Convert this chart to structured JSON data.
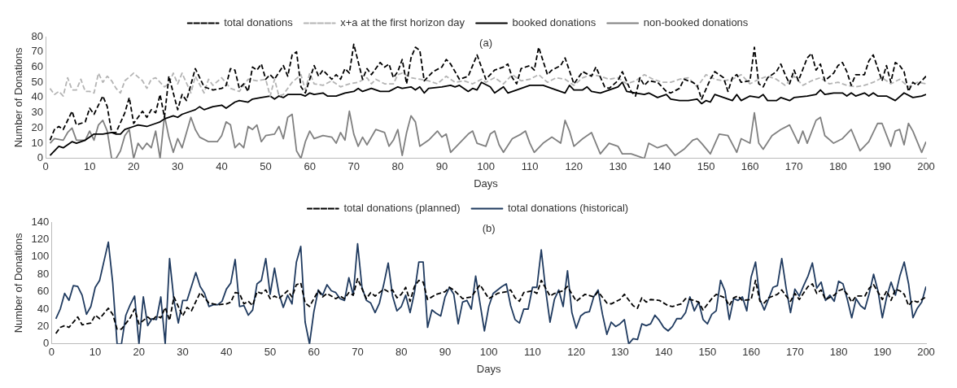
{
  "chart_data": [
    {
      "type": "line",
      "xlabel": "Days",
      "ylabel": "Number of Donations",
      "annotations": [
        "(a)"
      ],
      "xlim": [
        0,
        200
      ],
      "xticks": [
        0,
        10,
        20,
        30,
        40,
        50,
        60,
        70,
        80,
        90,
        100,
        110,
        120,
        130,
        140,
        150,
        160,
        170,
        180,
        190,
        200
      ],
      "ylim": [
        0,
        80
      ],
      "yticks": [
        0,
        10,
        20,
        30,
        40,
        50,
        60,
        70,
        80
      ],
      "grid": false,
      "legend": "top",
      "marker": "none",
      "series": [
        {
          "name": "total donations",
          "color": "#000000",
          "line_style": "dashed",
          "x": [
            1,
            2,
            3,
            4,
            6,
            7,
            9,
            10,
            11,
            13,
            14,
            15,
            16,
            18,
            19,
            20,
            22,
            23,
            24,
            25,
            26,
            27,
            28,
            30,
            31,
            32,
            34,
            36,
            38,
            40,
            41,
            42,
            43,
            44,
            45,
            46,
            47,
            48,
            49,
            50,
            51,
            52,
            54,
            55,
            56,
            57,
            58,
            59,
            61,
            62,
            63,
            65,
            66,
            67,
            68,
            69,
            70,
            72,
            73,
            74,
            76,
            77,
            78,
            79,
            80,
            81,
            82,
            83,
            84,
            85,
            86,
            88,
            90,
            91,
            92,
            94,
            96,
            98,
            99,
            100,
            102,
            104,
            105,
            106,
            107,
            108,
            110,
            111,
            112,
            114,
            115,
            117,
            118,
            120,
            122,
            124,
            125,
            127,
            128,
            130,
            131,
            133,
            134,
            135,
            136,
            137,
            139,
            141,
            142,
            144,
            145,
            147,
            148,
            149,
            151,
            152,
            154,
            155,
            156,
            157,
            158,
            160,
            161,
            162,
            163,
            164,
            166,
            167,
            168,
            169,
            170,
            171,
            173,
            174,
            175,
            176,
            177,
            179,
            180,
            181,
            182,
            183,
            184,
            186,
            187,
            188,
            190,
            191,
            192,
            193,
            194,
            195,
            196,
            197,
            198,
            199,
            200
          ],
          "values": [
            12,
            19,
            21,
            19,
            31,
            22,
            24,
            33,
            29,
            41,
            34,
            17,
            17,
            30,
            40,
            23,
            31,
            27,
            32,
            30,
            42,
            27,
            54,
            32,
            42,
            38,
            59,
            47,
            45,
            46,
            48,
            59,
            58,
            46,
            49,
            44,
            60,
            58,
            62,
            52,
            55,
            52,
            61,
            54,
            68,
            70,
            47,
            43,
            61,
            54,
            58,
            52,
            55,
            52,
            59,
            56,
            75,
            52,
            59,
            55,
            63,
            60,
            62,
            53,
            57,
            65,
            49,
            66,
            73,
            71,
            51,
            57,
            60,
            65,
            62,
            52,
            54,
            68,
            60,
            52,
            58,
            60,
            62,
            53,
            49,
            59,
            61,
            58,
            73,
            55,
            58,
            61,
            66,
            49,
            57,
            54,
            60,
            47,
            46,
            51,
            57,
            44,
            41,
            53,
            48,
            51,
            50,
            44,
            43,
            46,
            52,
            50,
            48,
            39,
            52,
            57,
            53,
            44,
            53,
            55,
            50,
            51,
            73,
            49,
            47,
            53,
            57,
            62,
            55,
            49,
            58,
            51,
            66,
            69,
            58,
            62,
            51,
            56,
            61,
            63,
            57,
            48,
            55,
            55,
            64,
            68,
            51,
            61,
            50,
            63,
            61,
            57,
            44,
            50,
            48,
            51,
            54
          ]
        },
        {
          "name": "x+a at the first horizon day",
          "color": "#b4b4b4",
          "line_style": "dashed",
          "x": [
            1,
            2,
            3,
            4,
            5,
            6,
            7,
            8,
            9,
            10,
            11,
            12,
            13,
            14,
            15,
            16,
            17,
            18,
            20,
            22,
            23,
            24,
            25,
            27,
            28,
            29,
            30,
            31,
            33,
            34,
            36,
            37,
            38,
            40,
            42,
            44,
            46,
            48,
            50,
            51,
            52,
            53,
            54,
            56,
            58,
            59,
            60,
            61,
            63,
            65,
            67,
            69,
            71,
            73,
            74,
            75,
            77,
            79,
            80,
            81,
            83,
            85,
            87,
            89,
            91,
            93,
            95,
            97,
            99,
            100,
            102,
            104,
            106,
            108,
            110,
            112,
            114,
            116,
            118,
            120,
            122,
            124,
            126,
            128,
            130,
            132,
            134,
            136,
            138,
            140,
            142,
            144,
            146,
            148,
            150,
            152,
            154,
            156,
            158,
            160,
            162,
            164,
            166,
            168,
            170,
            172,
            174,
            176,
            178,
            180,
            182,
            184,
            186,
            188,
            190,
            192,
            194,
            196,
            198,
            200
          ],
          "values": [
            46,
            42,
            44,
            41,
            53,
            45,
            45,
            52,
            44,
            44,
            43,
            56,
            50,
            54,
            51,
            46,
            43,
            51,
            56,
            51,
            46,
            52,
            53,
            47,
            49,
            56,
            49,
            56,
            43,
            54,
            43,
            52,
            48,
            53,
            46,
            44,
            52,
            51,
            52,
            41,
            52,
            41,
            42,
            50,
            55,
            45,
            56,
            49,
            48,
            51,
            47,
            49,
            50,
            53,
            49,
            52,
            49,
            49,
            55,
            56,
            53,
            52,
            51,
            49,
            54,
            50,
            51,
            49,
            52,
            50,
            53,
            49,
            55,
            51,
            52,
            55,
            50,
            53,
            52,
            48,
            53,
            55,
            54,
            52,
            53,
            49,
            51,
            55,
            52,
            50,
            50,
            52,
            53,
            47,
            55,
            52,
            51,
            52,
            55,
            49,
            52,
            54,
            52,
            48,
            54,
            48,
            51,
            53,
            49,
            50,
            48,
            47,
            48,
            50,
            53,
            49,
            52,
            47,
            50,
            49
          ]
        },
        {
          "name": "booked donations",
          "color": "#000000",
          "line_style": "solid",
          "x": [
            1,
            3,
            4,
            5,
            6,
            7,
            9,
            10,
            11,
            13,
            15,
            16,
            17,
            18,
            20,
            21,
            23,
            25,
            26,
            27,
            29,
            30,
            31,
            33,
            34,
            35,
            36,
            38,
            40,
            41,
            43,
            44,
            46,
            47,
            49,
            51,
            52,
            53,
            54,
            55,
            58,
            59,
            60,
            61,
            63,
            64,
            66,
            68,
            70,
            71,
            72,
            74,
            76,
            78,
            80,
            81,
            83,
            84,
            85,
            86,
            87,
            90,
            92,
            93,
            94,
            96,
            97,
            98,
            99,
            101,
            102,
            104,
            105,
            107,
            110,
            113,
            116,
            118,
            119,
            120,
            122,
            123,
            124,
            126,
            128,
            130,
            131,
            132,
            134,
            136,
            137,
            139,
            141,
            142,
            144,
            146,
            148,
            149,
            150,
            151,
            152,
            154,
            156,
            157,
            158,
            160,
            162,
            163,
            164,
            166,
            167,
            169,
            170,
            173,
            175,
            176,
            177,
            179,
            181,
            182,
            183,
            184,
            186,
            187,
            188,
            189,
            191,
            193,
            195,
            197,
            199,
            200
          ],
          "values": [
            2,
            8,
            7,
            9,
            11,
            10,
            12,
            14,
            16,
            16,
            17,
            16,
            16,
            19,
            21,
            22,
            21,
            23,
            24,
            26,
            28,
            27,
            29,
            31,
            32,
            34,
            32,
            34,
            35,
            33,
            37,
            38,
            37,
            39,
            40,
            41,
            39,
            41,
            40,
            42,
            42,
            41,
            43,
            42,
            43,
            41,
            41,
            43,
            44,
            46,
            44,
            46,
            44,
            44,
            47,
            46,
            47,
            45,
            47,
            43,
            46,
            47,
            48,
            47,
            48,
            44,
            46,
            45,
            50,
            47,
            43,
            47,
            43,
            45,
            48,
            48,
            45,
            43,
            48,
            45,
            45,
            47,
            44,
            43,
            45,
            47,
            50,
            44,
            43,
            42,
            43,
            40,
            42,
            39,
            38,
            38,
            39,
            36,
            38,
            37,
            42,
            40,
            38,
            42,
            38,
            41,
            40,
            42,
            38,
            38,
            40,
            38,
            40,
            41,
            42,
            45,
            42,
            43,
            43,
            41,
            43,
            41,
            43,
            41,
            43,
            41,
            41,
            38,
            43,
            40,
            41,
            42
          ]
        },
        {
          "name": "non-booked donations",
          "color": "#808080",
          "line_style": "solid",
          "x": [
            1,
            2,
            4,
            5,
            6,
            7,
            9,
            10,
            11,
            12,
            13,
            14,
            15,
            16,
            17,
            18,
            19,
            20,
            21,
            22,
            23,
            24,
            25,
            26,
            27,
            28,
            29,
            30,
            31,
            33,
            34,
            35,
            37,
            39,
            40,
            41,
            42,
            43,
            44,
            45,
            46,
            47,
            48,
            49,
            50,
            52,
            53,
            54,
            55,
            56,
            57,
            58,
            59,
            60,
            61,
            63,
            65,
            66,
            67,
            68,
            69,
            70,
            71,
            72,
            73,
            75,
            77,
            78,
            79,
            80,
            81,
            82,
            83,
            84,
            85,
            87,
            89,
            90,
            91,
            92,
            94,
            96,
            97,
            98,
            100,
            101,
            102,
            103,
            104,
            106,
            108,
            109,
            110,
            111,
            113,
            115,
            117,
            118,
            119,
            120,
            122,
            124,
            125,
            126,
            128,
            130,
            131,
            133,
            135,
            136,
            137,
            139,
            141,
            143,
            145,
            147,
            148,
            149,
            151,
            153,
            155,
            157,
            158,
            160,
            161,
            162,
            163,
            165,
            167,
            169,
            171,
            172,
            173,
            175,
            176,
            177,
            179,
            181,
            183,
            185,
            187,
            189,
            190,
            192,
            193,
            194,
            195,
            196,
            197,
            199,
            200
          ],
          "values": [
            10,
            13,
            12,
            17,
            20,
            12,
            12,
            18,
            12,
            22,
            25,
            18,
            0,
            0,
            5,
            15,
            19,
            0,
            10,
            6,
            10,
            7,
            18,
            0,
            28,
            14,
            4,
            13,
            7,
            27,
            19,
            14,
            11,
            11,
            15,
            24,
            22,
            7,
            10,
            7,
            21,
            19,
            22,
            11,
            15,
            16,
            21,
            13,
            27,
            29,
            5,
            0,
            11,
            18,
            13,
            15,
            14,
            10,
            17,
            12,
            31,
            16,
            8,
            14,
            9,
            19,
            17,
            8,
            12,
            19,
            2,
            17,
            28,
            24,
            8,
            12,
            18,
            14,
            16,
            4,
            10,
            16,
            18,
            10,
            8,
            16,
            18,
            9,
            4,
            13,
            16,
            18,
            10,
            4,
            10,
            14,
            10,
            25,
            18,
            8,
            13,
            17,
            10,
            3,
            10,
            8,
            3,
            3,
            1,
            0,
            10,
            7,
            9,
            2,
            6,
            12,
            13,
            10,
            3,
            16,
            15,
            4,
            13,
            10,
            30,
            10,
            6,
            15,
            19,
            22,
            10,
            18,
            10,
            25,
            27,
            15,
            10,
            13,
            19,
            5,
            11,
            23,
            23,
            8,
            18,
            19,
            9,
            23,
            18,
            4,
            11
          ]
        }
      ]
    },
    {
      "type": "line",
      "xlabel": "Days",
      "ylabel": "Number of Donations",
      "annotations": [
        "(b)"
      ],
      "xlim": [
        0,
        200
      ],
      "xticks": [
        0,
        10,
        20,
        30,
        40,
        50,
        60,
        70,
        80,
        90,
        100,
        110,
        120,
        130,
        140,
        150,
        160,
        170,
        180,
        190,
        200
      ],
      "ylim": [
        0,
        140
      ],
      "yticks": [
        0,
        20,
        40,
        60,
        80,
        100,
        120,
        140
      ],
      "grid": false,
      "legend": "top",
      "marker": "none",
      "series": [
        {
          "name": "total donations (planned)",
          "color": "#000000",
          "line_style": "dashed",
          "x": [
            1,
            2,
            3,
            4,
            6,
            7,
            9,
            10,
            11,
            13,
            14,
            15,
            16,
            18,
            19,
            20,
            22,
            23,
            24,
            25,
            26,
            27,
            28,
            30,
            31,
            32,
            34,
            36,
            38,
            40,
            41,
            42,
            43,
            44,
            45,
            46,
            47,
            48,
            49,
            50,
            51,
            52,
            54,
            55,
            56,
            57,
            58,
            59,
            61,
            62,
            63,
            65,
            66,
            67,
            68,
            69,
            70,
            72,
            73,
            74,
            76,
            77,
            78,
            79,
            80,
            81,
            82,
            83,
            84,
            85,
            86,
            88,
            90,
            91,
            92,
            94,
            96,
            98,
            99,
            100,
            102,
            104,
            105,
            106,
            107,
            108,
            110,
            111,
            112,
            114,
            115,
            117,
            118,
            120,
            122,
            124,
            125,
            127,
            128,
            130,
            131,
            133,
            134,
            135,
            136,
            137,
            139,
            141,
            142,
            144,
            145,
            147,
            148,
            149,
            151,
            152,
            154,
            155,
            156,
            157,
            158,
            160,
            161,
            162,
            163,
            164,
            166,
            167,
            168,
            169,
            170,
            171,
            173,
            174,
            175,
            176,
            177,
            179,
            180,
            181,
            182,
            183,
            184,
            186,
            187,
            188,
            190,
            191,
            192,
            193,
            194,
            195,
            196,
            197,
            198,
            199,
            200
          ],
          "values": [
            12,
            19,
            21,
            19,
            31,
            22,
            24,
            33,
            29,
            41,
            34,
            17,
            17,
            30,
            40,
            23,
            31,
            27,
            32,
            30,
            42,
            27,
            54,
            32,
            42,
            38,
            59,
            47,
            45,
            46,
            48,
            59,
            58,
            46,
            49,
            44,
            60,
            58,
            62,
            52,
            55,
            52,
            61,
            54,
            68,
            70,
            47,
            43,
            61,
            54,
            58,
            52,
            55,
            52,
            59,
            56,
            75,
            52,
            59,
            55,
            63,
            60,
            62,
            53,
            57,
            65,
            49,
            66,
            73,
            71,
            51,
            57,
            60,
            65,
            62,
            52,
            54,
            68,
            60,
            52,
            58,
            60,
            62,
            53,
            49,
            59,
            61,
            58,
            73,
            55,
            58,
            61,
            66,
            49,
            57,
            54,
            60,
            47,
            46,
            51,
            57,
            44,
            41,
            53,
            48,
            51,
            50,
            44,
            43,
            46,
            52,
            50,
            48,
            39,
            52,
            57,
            53,
            44,
            53,
            55,
            50,
            51,
            73,
            49,
            47,
            53,
            57,
            62,
            55,
            49,
            58,
            51,
            66,
            69,
            58,
            62,
            51,
            56,
            61,
            63,
            57,
            48,
            55,
            55,
            64,
            68,
            51,
            61,
            50,
            63,
            61,
            57,
            44,
            50,
            48,
            51,
            54
          ]
        },
        {
          "name": "total donations (historical)",
          "color": "#1f3a5f",
          "line_style": "solid",
          "x": [
            1,
            2,
            3,
            4,
            5,
            6,
            7,
            8,
            9,
            10,
            11,
            12,
            13,
            14,
            15,
            16,
            17,
            18,
            19,
            20,
            21,
            22,
            23,
            24,
            25,
            26,
            27,
            28,
            29,
            30,
            31,
            32,
            33,
            34,
            35,
            36,
            37,
            38,
            39,
            40,
            41,
            42,
            43,
            44,
            45,
            46,
            47,
            48,
            49,
            50,
            51,
            52,
            53,
            54,
            55,
            56,
            57,
            58,
            59,
            60,
            61,
            62,
            63,
            64,
            65,
            66,
            67,
            68,
            69,
            70,
            71,
            72,
            73,
            74,
            75,
            76,
            77,
            78,
            79,
            80,
            81,
            82,
            83,
            84,
            85,
            86,
            87,
            88,
            89,
            90,
            91,
            92,
            93,
            94,
            95,
            96,
            97,
            99,
            100,
            101,
            102,
            103,
            104,
            105,
            106,
            107,
            108,
            109,
            110,
            111,
            112,
            113,
            114,
            115,
            116,
            117,
            118,
            119,
            120,
            121,
            122,
            123,
            124,
            125,
            126,
            127,
            128,
            129,
            130,
            131,
            132,
            133,
            134,
            135,
            136,
            137,
            138,
            139,
            140,
            141,
            142,
            143,
            144,
            145,
            146,
            147,
            148,
            149,
            150,
            151,
            152,
            153,
            154,
            155,
            156,
            157,
            158,
            159,
            160,
            161,
            162,
            163,
            164,
            165,
            166,
            167,
            168,
            169,
            170,
            171,
            172,
            173,
            174,
            175,
            176,
            177,
            178,
            179,
            180,
            181,
            182,
            183,
            184,
            185,
            186,
            187,
            188,
            189,
            190,
            191,
            192,
            193,
            194,
            195,
            196,
            197,
            198,
            199,
            200
          ],
          "values": [
            29,
            40,
            58,
            50,
            67,
            66,
            56,
            34,
            43,
            65,
            73,
            95,
            117,
            70,
            0,
            0,
            33,
            45,
            55,
            0,
            54,
            21,
            29,
            28,
            54,
            0,
            98,
            50,
            24,
            50,
            50,
            66,
            82,
            66,
            58,
            43,
            45,
            45,
            49,
            63,
            70,
            97,
            43,
            44,
            33,
            39,
            69,
            73,
            98,
            57,
            87,
            58,
            42,
            56,
            46,
            94,
            112,
            25,
            0,
            37,
            62,
            56,
            68,
            61,
            59,
            52,
            50,
            76,
            56,
            115,
            65,
            50,
            47,
            36,
            47,
            69,
            93,
            55,
            38,
            43,
            56,
            36,
            59,
            94,
            94,
            19,
            39,
            35,
            32,
            54,
            65,
            57,
            23,
            48,
            50,
            40,
            78,
            15,
            43,
            58,
            62,
            66,
            69,
            44,
            28,
            24,
            40,
            40,
            65,
            65,
            108,
            62,
            25,
            51,
            62,
            43,
            84,
            36,
            18,
            32,
            36,
            37,
            54,
            62,
            34,
            11,
            25,
            20,
            23,
            28,
            0,
            6,
            5,
            23,
            21,
            23,
            33,
            27,
            19,
            15,
            20,
            29,
            29,
            36,
            54,
            38,
            48,
            28,
            23,
            34,
            38,
            73,
            61,
            28,
            52,
            50,
            54,
            38,
            77,
            94,
            51,
            39,
            52,
            65,
            67,
            98,
            64,
            36,
            63,
            55,
            67,
            78,
            93,
            64,
            71,
            50,
            56,
            49,
            72,
            69,
            51,
            30,
            52,
            44,
            40,
            58,
            80,
            61,
            30,
            54,
            71,
            56,
            78,
            94,
            69,
            30,
            41,
            48,
            66
          ]
        }
      ]
    }
  ]
}
